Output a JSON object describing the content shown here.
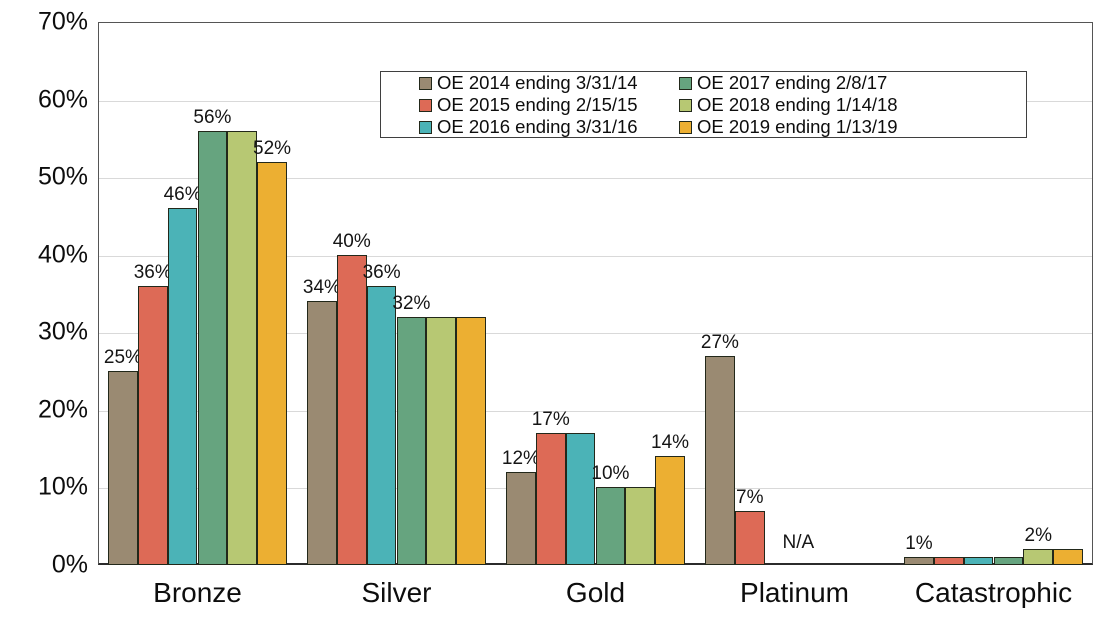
{
  "chart_data": {
    "type": "bar",
    "title": "",
    "xlabel": "",
    "ylabel": "",
    "categories": [
      "Bronze",
      "Silver",
      "Gold",
      "Platinum",
      "Catastrophic"
    ],
    "series": [
      {
        "name": "OE 2014 ending 3/31/14",
        "color": "#9A8A72",
        "values": [
          25,
          34,
          12,
          27,
          1
        ],
        "labels": [
          "25%",
          "34%",
          "12%",
          "27%",
          "1%"
        ]
      },
      {
        "name": "OE 2015 ending 2/15/15",
        "color": "#DD6A56",
        "values": [
          36,
          40,
          17,
          7,
          1
        ],
        "labels": [
          "36%",
          "40%",
          "17%",
          "7%",
          null
        ]
      },
      {
        "name": "OE 2016 ending 3/31/16",
        "color": "#4BB3B7",
        "values": [
          46,
          36,
          17,
          null,
          1
        ],
        "labels": [
          "46%",
          "36%",
          null,
          null,
          null
        ]
      },
      {
        "name": "OE 2017 ending 2/8/17",
        "color": "#66A47F",
        "values": [
          56,
          32,
          10,
          null,
          1
        ],
        "labels": [
          "56%",
          "32%",
          "10%",
          null,
          null
        ]
      },
      {
        "name": "OE 2018 ending 1/14/18",
        "color": "#B7C873",
        "values": [
          56,
          32,
          10,
          null,
          2
        ],
        "labels": [
          null,
          null,
          null,
          null,
          "2%"
        ]
      },
      {
        "name": "OE 2019 ending 1/13/19",
        "color": "#ECAF32",
        "values": [
          52,
          32,
          14,
          null,
          2
        ],
        "labels": [
          "52%",
          null,
          "14%",
          null,
          null
        ]
      }
    ],
    "na_annotation": {
      "category": "Platinum",
      "text": "N/A"
    },
    "ylim": [
      0,
      70
    ],
    "yticks": [
      "0%",
      "10%",
      "20%",
      "30%",
      "40%",
      "50%",
      "60%",
      "70%"
    ],
    "grid": true,
    "legend_position": "top-inside",
    "colors": {
      "gridline": "#d9d9d9",
      "plot_border": "#555555",
      "axis_line": "#2b2b2b",
      "bar_outline": "#22281a",
      "text": "#111111",
      "background": "#ffffff"
    }
  }
}
